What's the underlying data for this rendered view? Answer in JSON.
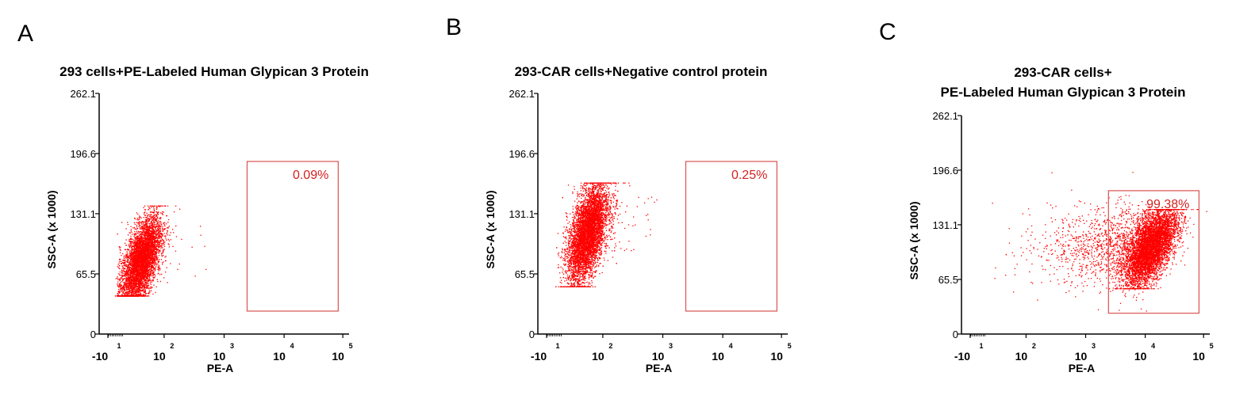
{
  "figure": {
    "panel_letters": [
      "A",
      "B",
      "C"
    ]
  },
  "colors": {
    "dots": "#ff0000",
    "gate": "#d9534f",
    "gate_label": "#d42020",
    "axis": "#000000"
  },
  "chart_data": [
    {
      "type": "scatter",
      "panel": "A",
      "title_lines": [
        "293 cells+PE-Labeled Human Glypican 3 Protein"
      ],
      "xlabel": "PE-A",
      "ylabel": "SSC-A (x 1000)",
      "x_scale": "log",
      "xlim": [
        -10,
        100000
      ],
      "ylim": [
        0,
        262.1
      ],
      "yticks": [
        "0",
        "65.5",
        "131.1",
        "196.6",
        "262.1"
      ],
      "xtick_labels": [
        {
          "base": "-10",
          "exp": "1"
        },
        {
          "base": "10",
          "exp": "2"
        },
        {
          "base": "10",
          "exp": "3"
        },
        {
          "base": "10",
          "exp": "4"
        },
        {
          "base": "10",
          "exp": "5"
        }
      ],
      "gate": {
        "x": [
          2500,
          100000
        ],
        "y": [
          25,
          188
        ],
        "label": "0.09%"
      },
      "population": {
        "center_x": 30,
        "center_y": 80,
        "y_min": 42,
        "y_max": 140,
        "events": 5000,
        "tilt": "positive",
        "outliers": 16
      }
    },
    {
      "type": "scatter",
      "panel": "B",
      "title_lines": [
        "293-CAR cells+Negative control protein"
      ],
      "xlabel": "PE-A",
      "ylabel": "SSC-A (x 1000)",
      "x_scale": "log",
      "xlim": [
        -10,
        100000
      ],
      "ylim": [
        0,
        262.1
      ],
      "yticks": [
        "0",
        "65.5",
        "131.1",
        "196.6",
        "262.1"
      ],
      "xtick_labels": [
        {
          "base": "-10",
          "exp": "1"
        },
        {
          "base": "10",
          "exp": "2"
        },
        {
          "base": "10",
          "exp": "3"
        },
        {
          "base": "10",
          "exp": "4"
        },
        {
          "base": "10",
          "exp": "5"
        }
      ],
      "gate": {
        "x": [
          2500,
          100000
        ],
        "y": [
          25,
          188
        ],
        "label": "0.25%"
      },
      "population": {
        "center_x": 45,
        "center_y": 110,
        "y_min": 52,
        "y_max": 165,
        "events": 6000,
        "tilt": "positive",
        "outliers": 35
      }
    },
    {
      "type": "scatter",
      "panel": "C",
      "title_lines": [
        "293-CAR cells+",
        "PE-Labeled Human Glypican 3 Protein"
      ],
      "xlabel": "PE-A",
      "ylabel": "SSC-A (x 1000)",
      "x_scale": "log",
      "xlim": [
        -10,
        100000
      ],
      "ylim": [
        0,
        262.1
      ],
      "yticks": [
        "0",
        "65.5",
        "131.1",
        "196.6",
        "262.1"
      ],
      "xtick_labels": [
        {
          "base": "-10",
          "exp": "1"
        },
        {
          "base": "10",
          "exp": "2"
        },
        {
          "base": "10",
          "exp": "3"
        },
        {
          "base": "10",
          "exp": "4"
        },
        {
          "base": "10",
          "exp": "5"
        }
      ],
      "gate": {
        "x": [
          2500,
          100000
        ],
        "y": [
          25,
          172
        ],
        "label": "99.38%"
      },
      "population": {
        "center_x": 13000,
        "center_y": 105,
        "y_min": 55,
        "y_max": 150,
        "events": 5500,
        "tilt": "positive",
        "outliers": 1400
      }
    }
  ]
}
